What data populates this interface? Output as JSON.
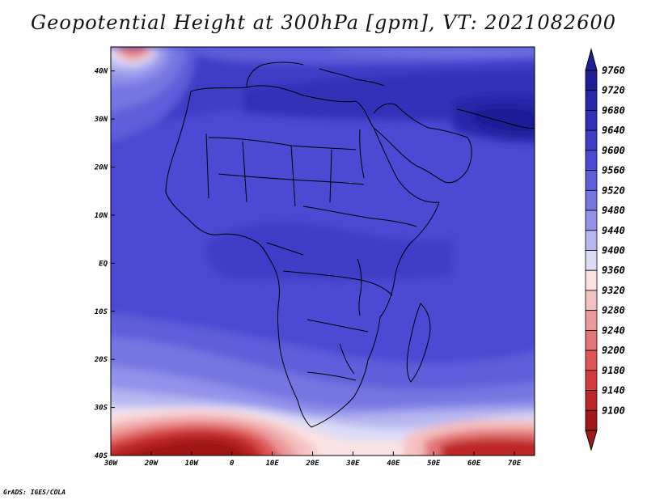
{
  "title": "Geopotential Height at 300hPa [gpm], VT: 2021082600",
  "credit": "GrADS: IGES/COLA",
  "map": {
    "lon_range": [
      -30,
      75
    ],
    "lat_range": [
      -40,
      45
    ],
    "lon_ticks": [
      {
        "value": -30,
        "label": "30W"
      },
      {
        "value": -20,
        "label": "20W"
      },
      {
        "value": -10,
        "label": "10W"
      },
      {
        "value": 0,
        "label": "0"
      },
      {
        "value": 10,
        "label": "10E"
      },
      {
        "value": 20,
        "label": "20E"
      },
      {
        "value": 30,
        "label": "30E"
      },
      {
        "value": 40,
        "label": "40E"
      },
      {
        "value": 50,
        "label": "50E"
      },
      {
        "value": 60,
        "label": "60E"
      },
      {
        "value": 70,
        "label": "70E"
      }
    ],
    "lat_ticks": [
      {
        "value": 40,
        "label": "40N"
      },
      {
        "value": 30,
        "label": "30N"
      },
      {
        "value": 20,
        "label": "20N"
      },
      {
        "value": 10,
        "label": "10N"
      },
      {
        "value": 0,
        "label": "EQ"
      },
      {
        "value": -10,
        "label": "10S"
      },
      {
        "value": -20,
        "label": "20S"
      },
      {
        "value": -30,
        "label": "30S"
      },
      {
        "value": -40,
        "label": "40S"
      }
    ]
  },
  "colorbar": {
    "levels": [
      "9760",
      "9720",
      "9680",
      "9640",
      "9600",
      "9560",
      "9520",
      "9480",
      "9440",
      "9400",
      "9360",
      "9320",
      "9280",
      "9240",
      "9200",
      "9180",
      "9140",
      "9100"
    ],
    "colors": [
      "#1e1e96",
      "#2828a8",
      "#3232b8",
      "#3e3ec6",
      "#4a4ad2",
      "#5e5edc",
      "#7676e2",
      "#9292ea",
      "#b6b6f0",
      "#dcdcf8",
      "#fbe2e2",
      "#f4c0c0",
      "#ec9a9a",
      "#e47676",
      "#de5656",
      "#d23c3c",
      "#bc2828",
      "#a01818"
    ]
  }
}
